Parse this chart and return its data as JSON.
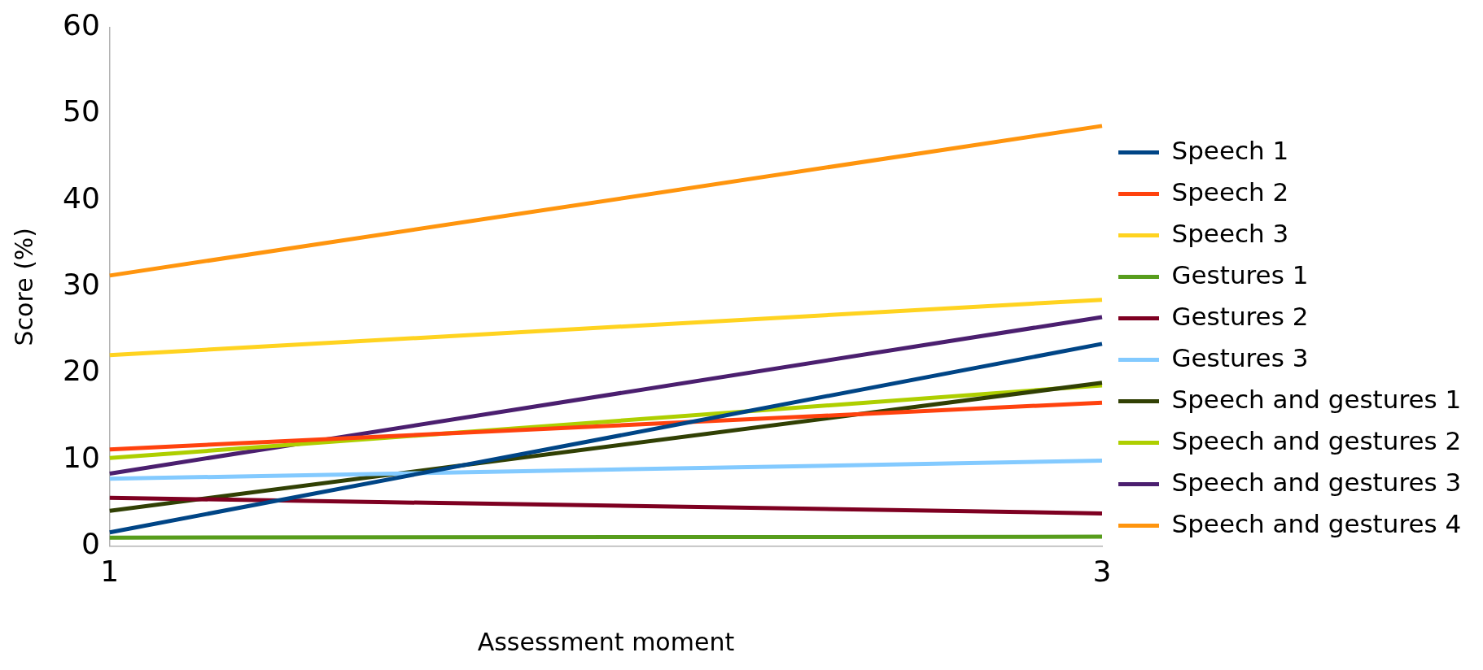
{
  "chart_data": {
    "type": "line",
    "xlabel": "Assessment moment",
    "ylabel": "Score (%)",
    "x": [
      1,
      3
    ],
    "xlim": [
      1,
      3
    ],
    "xticks": [
      1,
      3
    ],
    "ylim": [
      0,
      60
    ],
    "yticks": [
      0,
      10,
      20,
      30,
      40,
      50,
      60
    ],
    "grid": false,
    "legend": "right",
    "marker": "none",
    "line_style": "solid",
    "series": [
      {
        "name": "Speech 1",
        "color": "#004586",
        "values": [
          1.6,
          23.4
        ]
      },
      {
        "name": "Speech 2",
        "color": "#ff420e",
        "values": [
          11.2,
          16.6
        ]
      },
      {
        "name": "Speech 3",
        "color": "#ffd320",
        "values": [
          22.1,
          28.5
        ]
      },
      {
        "name": "Gestures 1",
        "color": "#579d1c",
        "values": [
          1.0,
          1.1
        ]
      },
      {
        "name": "Gestures 2",
        "color": "#7e0021",
        "values": [
          5.6,
          3.8
        ]
      },
      {
        "name": "Gestures 3",
        "color": "#83caff",
        "values": [
          7.8,
          9.9
        ]
      },
      {
        "name": "Speech and gestures 1",
        "color": "#314004",
        "values": [
          4.1,
          18.9
        ]
      },
      {
        "name": "Speech and gestures 2",
        "color": "#aecf00",
        "values": [
          10.2,
          18.6
        ]
      },
      {
        "name": "Speech and gestures 3",
        "color": "#4b1f6f",
        "values": [
          8.4,
          26.5
        ]
      },
      {
        "name": "Speech and gestures 4",
        "color": "#ff950e",
        "values": [
          31.3,
          48.6
        ]
      }
    ]
  }
}
